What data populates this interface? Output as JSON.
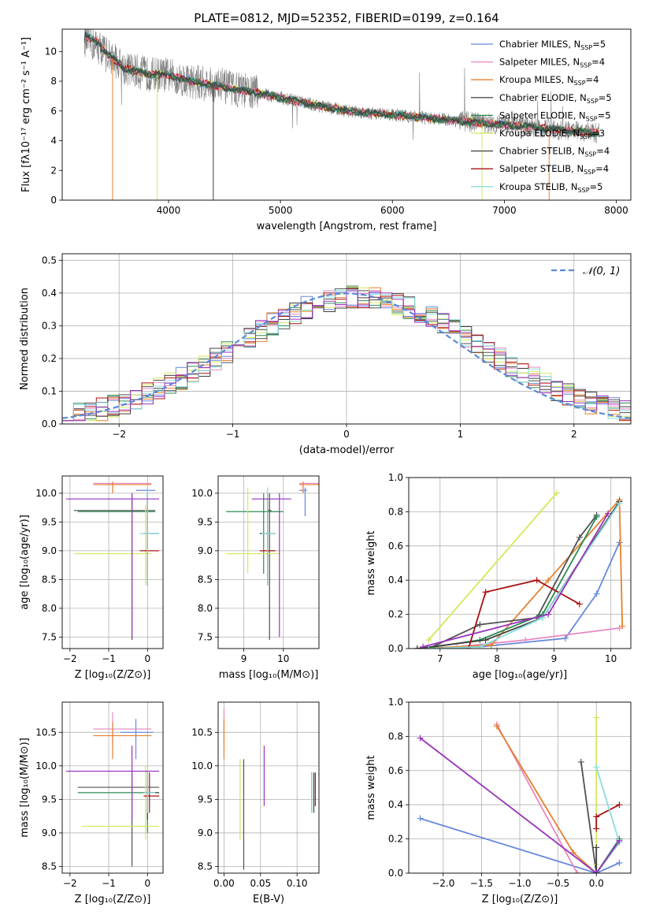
{
  "colors": [
    "#6688dd",
    "#e888c0",
    "#e6802e",
    "#505050",
    "#2e8b57",
    "#d4e85a",
    "#404040",
    "#aa1111",
    "#88dddd",
    "#9933bb"
  ],
  "chart_data": [
    {
      "id": "spectrum",
      "type": "line",
      "title": "PLATE=0812, MJD=52352, FIBERID=0199, z=0.164",
      "xlabel": "wavelength [Angstrom, rest frame]",
      "ylabel": "Flux [fλ10⁻¹⁷ erg cm⁻² s⁻¹ A⁻¹]",
      "xlim": [
        3050,
        8130
      ],
      "ylim": [
        0,
        11.5
      ],
      "xticks": [
        4000,
        5000,
        6000,
        7000,
        8000
      ],
      "yticks": [
        0,
        2,
        4,
        6,
        8,
        10
      ],
      "legend_position": "top-right",
      "legend": [
        {
          "label": "Chabrier MILES, N",
          "sub": "SSP",
          "tail": "=5"
        },
        {
          "label": "Salpeter MILES, N",
          "sub": "SSP",
          "tail": "=4"
        },
        {
          "label": "Kroupa MILES, N",
          "sub": "SSP",
          "tail": "=4"
        },
        {
          "label": "Chabrier ELODIE, N",
          "sub": "SSP",
          "tail": "=5"
        },
        {
          "label": "Salpeter ELODIE, N",
          "sub": "SSP",
          "tail": "=5"
        },
        {
          "label": "Kroupa ELODIE, N",
          "sub": "SSP",
          "tail": "=3"
        },
        {
          "label": "Chabrier STELIB, N",
          "sub": "SSP",
          "tail": "=4"
        },
        {
          "label": "Salpeter STELIB, N",
          "sub": "SSP",
          "tail": "=4"
        },
        {
          "label": "Kroupa STELIB, N",
          "sub": "SSP",
          "tail": "=5"
        }
      ],
      "continuum": {
        "x": [
          3250,
          3400,
          3600,
          3800,
          4000,
          4200,
          4500,
          4800,
          5000,
          5300,
          5600,
          5900,
          6200,
          6500,
          6800,
          7100,
          7400,
          7700,
          7850
        ],
        "y": [
          10.8,
          10.2,
          8.9,
          8.5,
          8.4,
          8.0,
          7.6,
          7.2,
          6.9,
          6.4,
          6.0,
          5.8,
          5.6,
          5.4,
          5.2,
          5.0,
          4.8,
          4.6,
          4.5
        ]
      }
    },
    {
      "id": "residuals",
      "type": "bar",
      "xlabel": "(data-model)/error",
      "ylabel": "Normed distribution",
      "xlim": [
        -2.5,
        2.5
      ],
      "ylim": [
        0,
        0.52
      ],
      "xticks": [
        -2,
        -1,
        0,
        1,
        2
      ],
      "yticks": [
        0.0,
        0.1,
        0.2,
        0.3,
        0.4,
        0.5
      ],
      "legend_label": "𝒩(0, 1)",
      "bin_width": 0.1,
      "bins_start": -2.5
    },
    {
      "id": "age-vs-Z",
      "type": "scatter",
      "xlabel": "Z [log₁₀(Z/Z⊙)]",
      "ylabel": "age  [log₁₀(age/yr)]",
      "xlim": [
        -2.2,
        0.4
      ],
      "ylim": [
        7.3,
        10.3
      ],
      "xticks": [
        -2,
        -1,
        0
      ],
      "yticks": [
        7.5,
        8.0,
        8.5,
        9.0,
        9.5,
        10.0
      ],
      "points": [
        {
          "x": 0.0,
          "y": 10.05,
          "xlo": -0.3,
          "xhi": 0.2,
          "ylo": 9.6,
          "yhi": 10.1,
          "c": 0
        },
        {
          "x": -0.9,
          "y": 10.17,
          "xlo": -1.4,
          "xhi": 0.1,
          "ylo": 10.0,
          "yhi": 10.2,
          "c": 1
        },
        {
          "x": -0.9,
          "y": 10.15,
          "xlo": -1.4,
          "xhi": 0.1,
          "ylo": 10.0,
          "yhi": 10.2,
          "c": 2
        },
        {
          "x": -0.4,
          "y": 9.7,
          "xlo": -1.9,
          "xhi": 0.2,
          "ylo": 7.45,
          "yhi": 10.0,
          "c": 3
        },
        {
          "x": 0.0,
          "y": 9.68,
          "xlo": -1.8,
          "xhi": 0.2,
          "ylo": 8.6,
          "yhi": 10.0,
          "c": 4
        },
        {
          "x": -0.05,
          "y": 8.95,
          "xlo": -1.9,
          "xhi": 0.1,
          "ylo": 8.4,
          "yhi": 9.8,
          "c": 5
        },
        {
          "x": 0.0,
          "y": 9.3,
          "xlo": -0.1,
          "xhi": 0.3,
          "ylo": 8.4,
          "yhi": 10.0,
          "c": 6
        },
        {
          "x": 0.0,
          "y": 9.0,
          "xlo": -0.2,
          "xhi": 0.3,
          "ylo": 8.5,
          "yhi": 9.9,
          "c": 7
        },
        {
          "x": 0.0,
          "y": 9.3,
          "xlo": -0.2,
          "xhi": 0.3,
          "ylo": 8.4,
          "yhi": 10.1,
          "c": 8
        },
        {
          "x": -0.4,
          "y": 9.9,
          "xlo": -2.1,
          "xhi": 0.3,
          "ylo": 7.5,
          "yhi": 10.0,
          "c": 9
        }
      ]
    },
    {
      "id": "age-vs-mass",
      "type": "scatter",
      "xlabel": "mass [log₁₀(M/M⊙)]",
      "ylabel": "",
      "xlim": [
        8.35,
        10.9
      ],
      "ylim": [
        7.3,
        10.3
      ],
      "xticks": [
        9,
        10
      ],
      "yticks": [
        7.5,
        8.0,
        8.5,
        9.0,
        9.5,
        10.0
      ],
      "points": [
        {
          "x": 10.55,
          "y": 10.05,
          "xlo": 10.4,
          "xhi": 10.6,
          "ylo": 9.6,
          "yhi": 10.1,
          "c": 0
        },
        {
          "x": 10.5,
          "y": 10.17,
          "xlo": 10.4,
          "xhi": 10.9,
          "ylo": 10.0,
          "yhi": 10.2,
          "c": 1
        },
        {
          "x": 10.5,
          "y": 10.15,
          "xlo": 10.4,
          "xhi": 10.9,
          "ylo": 10.0,
          "yhi": 10.2,
          "c": 2
        },
        {
          "x": 9.65,
          "y": 9.7,
          "xlo": 9.6,
          "xhi": 9.7,
          "ylo": 7.45,
          "yhi": 10.0,
          "c": 3
        },
        {
          "x": 9.5,
          "y": 9.68,
          "xlo": 8.55,
          "xhi": 10.0,
          "ylo": 8.6,
          "yhi": 10.0,
          "c": 4
        },
        {
          "x": 9.1,
          "y": 8.95,
          "xlo": 8.55,
          "xhi": 9.9,
          "ylo": 8.6,
          "yhi": 10.1,
          "c": 5
        },
        {
          "x": 9.6,
          "y": 9.3,
          "xlo": 9.4,
          "xhi": 9.8,
          "ylo": 8.4,
          "yhi": 10.0,
          "c": 6
        },
        {
          "x": 9.6,
          "y": 9.0,
          "xlo": 9.4,
          "xhi": 9.8,
          "ylo": 8.5,
          "yhi": 9.9,
          "c": 7
        },
        {
          "x": 9.6,
          "y": 9.3,
          "xlo": 9.45,
          "xhi": 9.8,
          "ylo": 8.4,
          "yhi": 10.1,
          "c": 8
        },
        {
          "x": 9.9,
          "y": 9.9,
          "xlo": 9.2,
          "xhi": 10.2,
          "ylo": 7.5,
          "yhi": 10.0,
          "c": 9
        }
      ]
    },
    {
      "id": "weight-vs-age",
      "type": "line",
      "xlabel": "age  [log₁₀(age/yr)]",
      "ylabel": "mass weight",
      "xlim": [
        6.45,
        10.35
      ],
      "ylim": [
        0,
        1.0
      ],
      "xticks": [
        7,
        8,
        9,
        10
      ],
      "yticks": [
        0.0,
        0.2,
        0.4,
        0.6,
        0.8,
        1.0
      ],
      "series": [
        {
          "c": 0,
          "x": [
            6.6,
            7.7,
            9.2,
            9.75,
            10.15
          ],
          "y": [
            0.0,
            0.01,
            0.06,
            0.32,
            0.62
          ]
        },
        {
          "c": 1,
          "x": [
            6.6,
            7.3,
            8.5,
            10.15
          ],
          "y": [
            0.0,
            0.01,
            0.05,
            0.12
          ]
        },
        {
          "c": 2,
          "x": [
            6.7,
            7.9,
            8.9,
            10.15,
            10.2
          ],
          "y": [
            0.0,
            0.02,
            0.4,
            0.87,
            0.13
          ]
        },
        {
          "c": 3,
          "x": [
            6.8,
            7.7,
            8.7,
            9.45,
            9.75
          ],
          "y": [
            0.0,
            0.14,
            0.18,
            0.65,
            0.78
          ]
        },
        {
          "c": 4,
          "x": [
            6.7,
            7.7,
            8.8,
            9.75
          ],
          "y": [
            0.0,
            0.05,
            0.2,
            0.77
          ]
        },
        {
          "c": 5,
          "x": [
            6.8,
            9.05
          ],
          "y": [
            0.05,
            0.91
          ]
        },
        {
          "c": 6,
          "x": [
            6.6,
            7.8,
            8.8,
            10.15
          ],
          "y": [
            0.0,
            0.05,
            0.18,
            0.86
          ]
        },
        {
          "c": 7,
          "x": [
            7.5,
            7.8,
            8.7,
            9.45
          ],
          "y": [
            0.0,
            0.33,
            0.4,
            0.26
          ]
        },
        {
          "c": 8,
          "x": [
            6.8,
            7.7,
            8.8,
            10.15
          ],
          "y": [
            0.0,
            0.01,
            0.18,
            0.85
          ]
        },
        {
          "c": 9,
          "x": [
            6.7,
            8.9,
            9.95
          ],
          "y": [
            0.01,
            0.2,
            0.79
          ]
        }
      ]
    },
    {
      "id": "mass-vs-Z",
      "type": "scatter",
      "xlabel": "Z [log₁₀(Z/Z⊙)]",
      "ylabel": "mass [log₁₀(M/M⊙)]",
      "xlim": [
        -2.2,
        0.4
      ],
      "ylim": [
        8.4,
        10.95
      ],
      "xticks": [
        -2,
        -1,
        0
      ],
      "yticks": [
        8.5,
        9.0,
        9.5,
        10.0,
        10.5
      ],
      "points": [
        {
          "x": -0.3,
          "y": 10.5,
          "xlo": -0.7,
          "xhi": 0.15,
          "ylo": 10.1,
          "yhi": 10.7,
          "c": 0
        },
        {
          "x": -0.9,
          "y": 10.55,
          "xlo": -1.4,
          "xhi": 0.1,
          "ylo": 10.3,
          "yhi": 10.8,
          "c": 1
        },
        {
          "x": -0.9,
          "y": 10.45,
          "xlo": -1.4,
          "xhi": 0.1,
          "ylo": 10.1,
          "yhi": 10.65,
          "c": 2
        },
        {
          "x": -0.4,
          "y": 9.68,
          "xlo": -1.8,
          "xhi": 0.3,
          "ylo": 8.5,
          "yhi": 9.9,
          "c": 3
        },
        {
          "x": 0.0,
          "y": 9.6,
          "xlo": -1.8,
          "xhi": 0.3,
          "ylo": 9.0,
          "yhi": 9.9,
          "c": 4
        },
        {
          "x": -0.05,
          "y": 9.1,
          "xlo": -1.7,
          "xhi": 0.3,
          "ylo": 8.9,
          "yhi": 10.0,
          "c": 5
        },
        {
          "x": 0.0,
          "y": 9.6,
          "xlo": -0.1,
          "xhi": 0.3,
          "ylo": 9.2,
          "yhi": 9.9,
          "c": 6
        },
        {
          "x": 0.05,
          "y": 9.55,
          "xlo": -0.1,
          "xhi": 0.3,
          "ylo": 9.3,
          "yhi": 9.9,
          "c": 7
        },
        {
          "x": 0.0,
          "y": 9.6,
          "xlo": -0.1,
          "xhi": 0.2,
          "ylo": 9.3,
          "yhi": 9.9,
          "c": 8
        },
        {
          "x": -0.4,
          "y": 9.92,
          "xlo": -2.1,
          "xhi": 0.3,
          "ylo": 9.2,
          "yhi": 10.3,
          "c": 9
        }
      ]
    },
    {
      "id": "mass-vs-EBV",
      "type": "scatter",
      "xlabel": "E(B-V)",
      "ylabel": "",
      "xlim": [
        -0.008,
        0.13
      ],
      "ylim": [
        8.4,
        10.95
      ],
      "xticks": [
        0.0,
        0.05,
        0.1
      ],
      "xticklabels": [
        "0.00",
        "0.05",
        "0.10"
      ],
      "yticks": [
        8.5,
        9.0,
        9.5,
        10.0,
        10.5
      ],
      "points": [
        {
          "x": 0.12,
          "y": 9.6,
          "xlo": 0.12,
          "xhi": 0.12,
          "ylo": 9.3,
          "yhi": 9.9,
          "c": 0
        },
        {
          "x": 0.0,
          "y": 10.55,
          "xlo": 0.0,
          "xhi": 0.0,
          "ylo": 10.3,
          "yhi": 10.85,
          "c": 1
        },
        {
          "x": 0.0,
          "y": 10.45,
          "xlo": 0.0,
          "xhi": 0.0,
          "ylo": 10.1,
          "yhi": 10.7,
          "c": 2
        },
        {
          "x": 0.027,
          "y": 9.6,
          "xlo": 0.027,
          "xhi": 0.027,
          "ylo": 8.45,
          "yhi": 10.1,
          "c": 3
        },
        {
          "x": 0.12,
          "y": 9.6,
          "xlo": 0.12,
          "xhi": 0.12,
          "ylo": 9.3,
          "yhi": 9.9,
          "c": 4
        },
        {
          "x": 0.022,
          "y": 9.5,
          "xlo": 0.022,
          "xhi": 0.022,
          "ylo": 8.9,
          "yhi": 10.1,
          "c": 5
        },
        {
          "x": 0.123,
          "y": 9.6,
          "xlo": 0.123,
          "xhi": 0.123,
          "ylo": 9.3,
          "yhi": 9.9,
          "c": 6
        },
        {
          "x": 0.125,
          "y": 9.6,
          "xlo": 0.125,
          "xhi": 0.125,
          "ylo": 9.4,
          "yhi": 9.9,
          "c": 7
        },
        {
          "x": 0.12,
          "y": 9.6,
          "xlo": 0.12,
          "xhi": 0.12,
          "ylo": 9.3,
          "yhi": 9.9,
          "c": 8
        },
        {
          "x": 0.055,
          "y": 9.9,
          "xlo": 0.055,
          "xhi": 0.055,
          "ylo": 9.4,
          "yhi": 10.3,
          "c": 9
        }
      ]
    },
    {
      "id": "weight-vs-Z",
      "type": "line",
      "xlabel": "Z [log₁₀(Z/Z⊙)]",
      "ylabel": "mass weight",
      "xlim": [
        -2.45,
        0.45
      ],
      "ylim": [
        0,
        1.0
      ],
      "xticks": [
        -2.0,
        -1.5,
        -1.0,
        -0.5,
        0.0
      ],
      "xticklabels": [
        "−2.0",
        "−1.5",
        "−1.0",
        "−0.5",
        "0.0"
      ],
      "yticks": [
        0.0,
        0.2,
        0.4,
        0.6,
        0.8,
        1.0
      ],
      "series": [
        {
          "c": 0,
          "x": [
            -2.3,
            0.0,
            0.3
          ],
          "y": [
            0.32,
            0.0,
            0.06
          ]
        },
        {
          "c": 1,
          "x": [
            -1.3,
            -0.25
          ],
          "y": [
            0.87,
            0.0
          ]
        },
        {
          "c": 2,
          "x": [
            -1.3,
            -0.3,
            0.0
          ],
          "y": [
            0.86,
            0.12,
            0.0
          ]
        },
        {
          "c": 3,
          "x": [
            -0.2,
            0.0,
            0.3
          ],
          "y": [
            0.65,
            0.0,
            0.18
          ]
        },
        {
          "c": 4,
          "x": [
            0.0,
            0.3
          ],
          "y": [
            0.0,
            0.2
          ]
        },
        {
          "c": 5,
          "x": [
            0.0,
            0.0
          ],
          "y": [
            0.05,
            0.91
          ]
        },
        {
          "c": 6,
          "x": [
            0.0,
            0.0,
            0.3
          ],
          "y": [
            0.15,
            0.0,
            0.18
          ]
        },
        {
          "c": 7,
          "x": [
            0.0,
            0.0,
            0.3
          ],
          "y": [
            0.26,
            0.33,
            0.4
          ]
        },
        {
          "c": 8,
          "x": [
            0.0,
            0.3,
            0.0
          ],
          "y": [
            0.62,
            0.18,
            0.0
          ]
        },
        {
          "c": 9,
          "x": [
            -2.3,
            0.0,
            0.3
          ],
          "y": [
            0.79,
            0.0,
            0.19
          ]
        }
      ]
    }
  ]
}
